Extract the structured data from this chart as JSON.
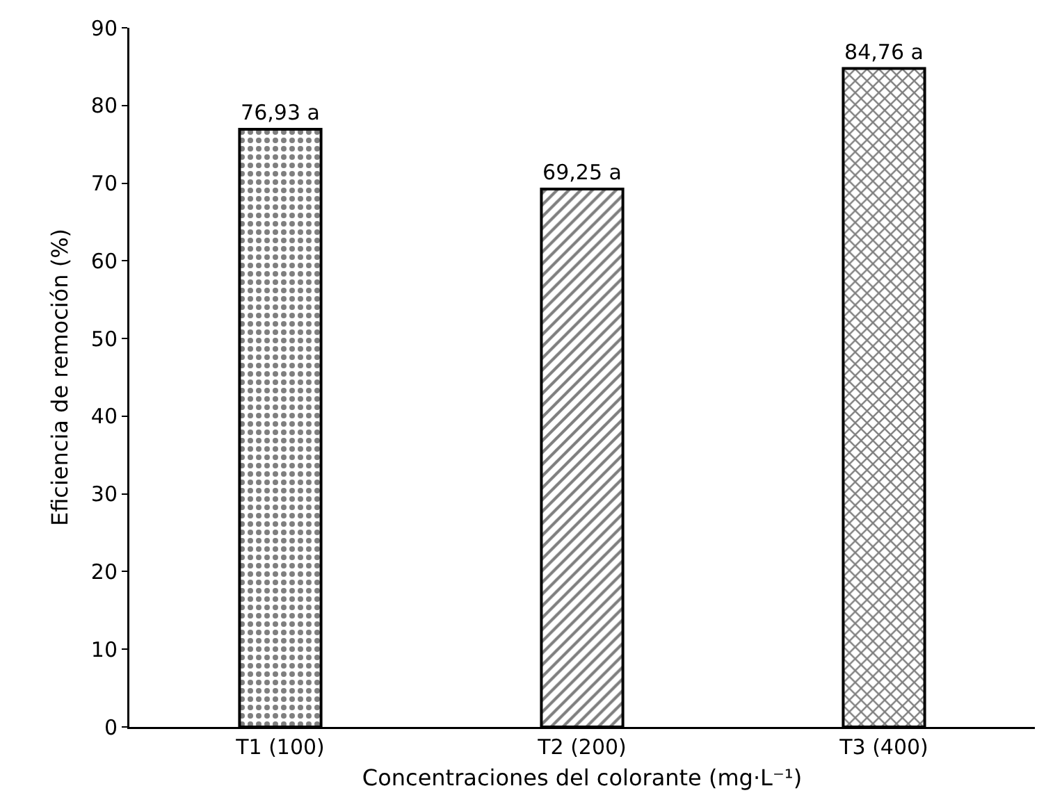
{
  "chart_data": {
    "type": "bar",
    "xlabel": "Concentraciones del colorante (mg·L⁻¹)",
    "ylabel": "Eficiencia de remoción (%)",
    "categories": [
      "T1 (100)",
      "T2 (200)",
      "T3 (400)"
    ],
    "values": [
      76.93,
      69.25,
      84.76
    ],
    "value_labels": [
      "76,93 a",
      "69,25 a",
      "84,76 a"
    ],
    "colors": [
      "#000000",
      "#000000",
      "#000000"
    ],
    "ylim": [
      0,
      90
    ],
    "yticks": [
      0,
      10,
      20,
      30,
      40,
      50,
      60,
      70,
      80,
      90
    ],
    "grid": false
  }
}
